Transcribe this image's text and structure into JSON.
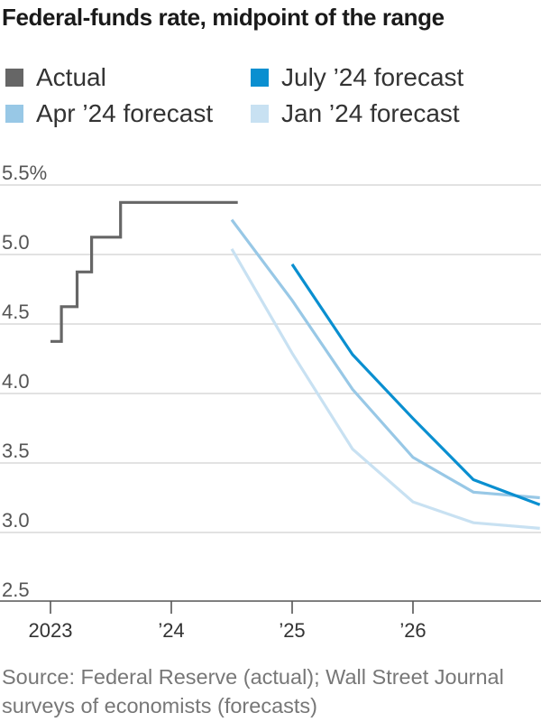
{
  "title": "Federal-funds rate, midpoint of the range",
  "source": "Source: Federal Reserve (actual); Wall Street Journal surveys of economists (forecasts)",
  "chart_data": {
    "type": "line",
    "title": "Federal-funds rate, midpoint of the range",
    "xlabel": "",
    "ylabel": "",
    "xlim": [
      2023.0,
      2027.05
    ],
    "ylim": [
      2.5,
      5.5
    ],
    "grid": true,
    "y_ticks": [
      {
        "value": 5.5,
        "label": "5.5%"
      },
      {
        "value": 5.0,
        "label": "5.0"
      },
      {
        "value": 4.5,
        "label": "4.5"
      },
      {
        "value": 4.0,
        "label": "4.0"
      },
      {
        "value": 3.5,
        "label": "3.5"
      },
      {
        "value": 3.0,
        "label": "3.0"
      },
      {
        "value": 2.5,
        "label": "2.5"
      }
    ],
    "x_ticks": [
      {
        "value": 2023,
        "label": "2023"
      },
      {
        "value": 2024,
        "label": "’24"
      },
      {
        "value": 2025,
        "label": "’25"
      },
      {
        "value": 2026,
        "label": "’26"
      }
    ],
    "legend_position": "top",
    "series": [
      {
        "name": "Actual",
        "color": "#666666",
        "step": true,
        "points": [
          [
            2023.0,
            4.375
          ],
          [
            2023.09,
            4.375
          ],
          [
            2023.09,
            4.625
          ],
          [
            2023.22,
            4.625
          ],
          [
            2023.22,
            4.875
          ],
          [
            2023.34,
            4.875
          ],
          [
            2023.34,
            5.125
          ],
          [
            2023.58,
            5.125
          ],
          [
            2023.58,
            5.375
          ],
          [
            2024.55,
            5.375
          ]
        ]
      },
      {
        "name": "July ’24 forecast",
        "color": "#0a8fd0",
        "step": false,
        "points": [
          [
            2025.0,
            4.93
          ],
          [
            2025.5,
            4.28
          ],
          [
            2026.0,
            3.82
          ],
          [
            2026.5,
            3.38
          ],
          [
            2027.05,
            3.2
          ]
        ]
      },
      {
        "name": "Apr ’24 forecast",
        "color": "#98c8e6",
        "step": false,
        "points": [
          [
            2024.5,
            5.25
          ],
          [
            2025.0,
            4.67
          ],
          [
            2025.5,
            4.03
          ],
          [
            2026.0,
            3.54
          ],
          [
            2026.5,
            3.29
          ],
          [
            2027.05,
            3.25
          ]
        ]
      },
      {
        "name": "Jan ’24 forecast",
        "color": "#c8e1f2",
        "step": false,
        "points": [
          [
            2024.5,
            5.04
          ],
          [
            2025.0,
            4.29
          ],
          [
            2025.5,
            3.6
          ],
          [
            2026.0,
            3.22
          ],
          [
            2026.5,
            3.07
          ],
          [
            2027.05,
            3.03
          ]
        ]
      }
    ]
  }
}
